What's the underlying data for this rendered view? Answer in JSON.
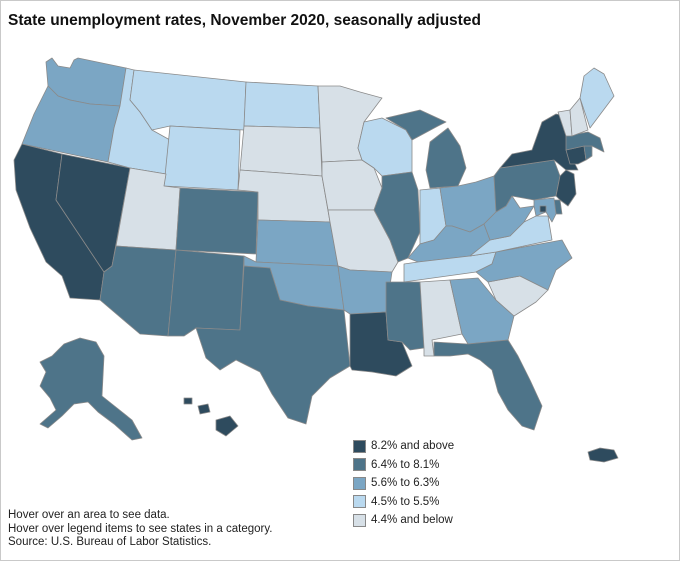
{
  "title": "State unemployment rates, November 2020, seasonally adjusted",
  "legend": [
    {
      "label": "8.2% and above",
      "color": "#2e4b5e"
    },
    {
      "label": "6.4% to 8.1%",
      "color": "#4e7489"
    },
    {
      "label": "5.6% to 6.3%",
      "color": "#7ba6c4"
    },
    {
      "label": "4.5% to 5.5%",
      "color": "#bad9ef"
    },
    {
      "label": "4.4% and below",
      "color": "#d7e0e7"
    }
  ],
  "notes": {
    "line1": "Hover over an area to see data.",
    "line2": "Hover over legend items to see states in a category.",
    "line3": "Source: U.S. Bureau of Labor Statistics."
  },
  "states": {
    "WA": {
      "name": "Washington",
      "category": 2
    },
    "OR": {
      "name": "Oregon",
      "category": 2
    },
    "CA": {
      "name": "California",
      "category": 0
    },
    "NV": {
      "name": "Nevada",
      "category": 0
    },
    "ID": {
      "name": "Idaho",
      "category": 3
    },
    "MT": {
      "name": "Montana",
      "category": 3
    },
    "WY": {
      "name": "Wyoming",
      "category": 3
    },
    "UT": {
      "name": "Utah",
      "category": 4
    },
    "AZ": {
      "name": "Arizona",
      "category": 1
    },
    "CO": {
      "name": "Colorado",
      "category": 1
    },
    "NM": {
      "name": "New Mexico",
      "category": 1
    },
    "ND": {
      "name": "North Dakota",
      "category": 3
    },
    "SD": {
      "name": "South Dakota",
      "category": 4
    },
    "NE": {
      "name": "Nebraska",
      "category": 4
    },
    "KS": {
      "name": "Kansas",
      "category": 2
    },
    "OK": {
      "name": "Oklahoma",
      "category": 2
    },
    "TX": {
      "name": "Texas",
      "category": 1
    },
    "MN": {
      "name": "Minnesota",
      "category": 4
    },
    "IA": {
      "name": "Iowa",
      "category": 4
    },
    "MO": {
      "name": "Missouri",
      "category": 4
    },
    "AR": {
      "name": "Arkansas",
      "category": 2
    },
    "LA": {
      "name": "Louisiana",
      "category": 0
    },
    "WI": {
      "name": "Wisconsin",
      "category": 3
    },
    "IL": {
      "name": "Illinois",
      "category": 1
    },
    "MI": {
      "name": "Michigan",
      "category": 1
    },
    "IN": {
      "name": "Indiana",
      "category": 3
    },
    "OH": {
      "name": "Ohio",
      "category": 2
    },
    "KY": {
      "name": "Kentucky",
      "category": 2
    },
    "TN": {
      "name": "Tennessee",
      "category": 3
    },
    "MS": {
      "name": "Mississippi",
      "category": 1
    },
    "AL": {
      "name": "Alabama",
      "category": 4
    },
    "GA": {
      "name": "Georgia",
      "category": 2
    },
    "FL": {
      "name": "Florida",
      "category": 1
    },
    "SC": {
      "name": "South Carolina",
      "category": 4
    },
    "NC": {
      "name": "North Carolina",
      "category": 2
    },
    "VA": {
      "name": "Virginia",
      "category": 3
    },
    "WV": {
      "name": "West Virginia",
      "category": 2
    },
    "PA": {
      "name": "Pennsylvania",
      "category": 1
    },
    "NY": {
      "name": "New York",
      "category": 0
    },
    "NJ": {
      "name": "New Jersey",
      "category": 0
    },
    "DE": {
      "name": "Delaware",
      "category": 1
    },
    "MD": {
      "name": "Maryland",
      "category": 2
    },
    "DC": {
      "name": "District of Columbia",
      "category": 0
    },
    "CT": {
      "name": "Connecticut",
      "category": 0
    },
    "RI": {
      "name": "Rhode Island",
      "category": 1
    },
    "MA": {
      "name": "Massachusetts",
      "category": 1
    },
    "VT": {
      "name": "Vermont",
      "category": 4
    },
    "NH": {
      "name": "New Hampshire",
      "category": 4
    },
    "ME": {
      "name": "Maine",
      "category": 3
    },
    "AK": {
      "name": "Alaska",
      "category": 1
    },
    "HI": {
      "name": "Hawaii",
      "category": 0
    },
    "PR": {
      "name": "Puerto Rico",
      "category": 0
    }
  }
}
